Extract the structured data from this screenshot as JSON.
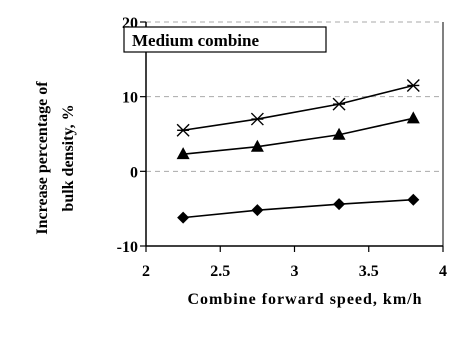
{
  "chart_data": {
    "type": "line",
    "title": "Medium combine",
    "xlabel": "Combine forward speed, km/h",
    "ylabel": "Increase percentage of bulk density, %",
    "xlim": [
      2,
      4
    ],
    "ylim": [
      -10,
      20
    ],
    "xticks": [
      "2",
      "2.5",
      "3",
      "3.5",
      "4"
    ],
    "yticks": [
      "-10",
      "0",
      "10",
      "20"
    ],
    "grid": "horizontal dashed",
    "series": [
      {
        "marker": "asterisk",
        "x": [
          2.25,
          2.75,
          3.3,
          3.8
        ],
        "y": [
          5.5,
          7.0,
          9.0,
          11.5
        ]
      },
      {
        "marker": "triangle",
        "x": [
          2.25,
          2.75,
          3.3,
          3.8
        ],
        "y": [
          2.3,
          3.3,
          4.9,
          7.1
        ]
      },
      {
        "marker": "diamond",
        "x": [
          2.25,
          2.75,
          3.3,
          3.8
        ],
        "y": [
          -6.2,
          -5.2,
          -4.4,
          -3.8
        ]
      }
    ]
  }
}
